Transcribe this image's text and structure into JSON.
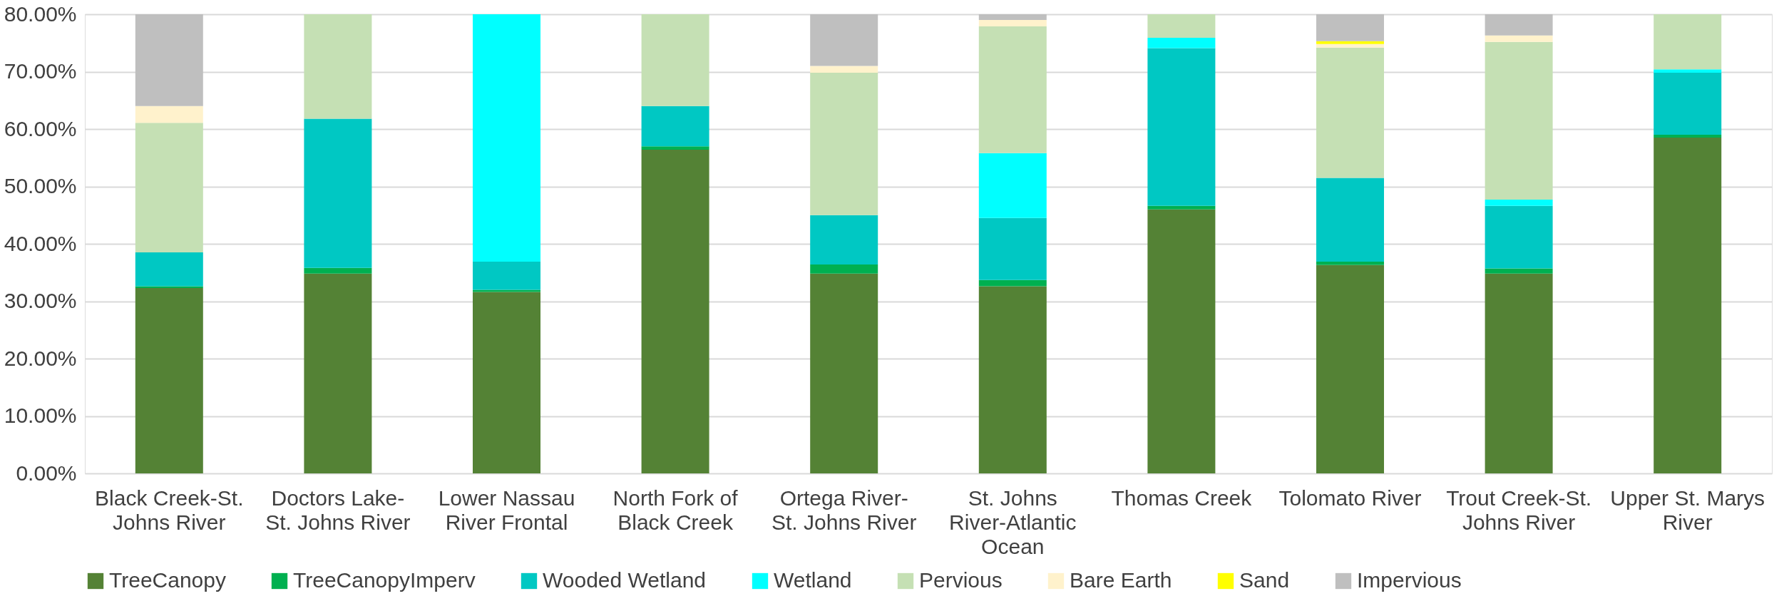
{
  "chart_data": {
    "type": "bar",
    "stacked": true,
    "legend": "bottom",
    "grid": "y",
    "categories": [
      "Black Creek-St. Johns River",
      "Doctors Lake-St. Johns River",
      "Lower Nassau River Frontal",
      "North Fork of Black Creek",
      "Ortega River-St. Johns River",
      "St. Johns River-Atlantic Ocean",
      "Thomas Creek",
      "Tolomato River",
      "Trout Creek-St. Johns River",
      "Upper St. Marys River"
    ],
    "ylim": [
      0,
      80
    ],
    "yticks": [
      {
        "value": 0,
        "label": "0.00%"
      },
      {
        "value": 10,
        "label": "10.00%"
      },
      {
        "value": 20,
        "label": "20.00%"
      },
      {
        "value": 30,
        "label": "30.00%"
      },
      {
        "value": 40,
        "label": "40.00%"
      },
      {
        "value": 50,
        "label": "50.00%"
      },
      {
        "value": 60,
        "label": "60.00%"
      },
      {
        "value": 70,
        "label": "70.00%"
      },
      {
        "value": 80,
        "label": "80.00%"
      }
    ],
    "series": [
      {
        "name": "TreeCanopy",
        "color": "#548235",
        "values": [
          32.3,
          34.8,
          31.6,
          56.4,
          34.8,
          32.6,
          46.0,
          36.3,
          34.8,
          58.5
        ]
      },
      {
        "name": "TreeCanopyImperv",
        "color": "#00b050",
        "values": [
          0.3,
          1.0,
          0.4,
          0.6,
          1.6,
          1.1,
          0.6,
          0.6,
          0.9,
          0.5
        ]
      },
      {
        "name": "Wooded Wetland",
        "color": "#00c8c3",
        "values": [
          5.9,
          26.0,
          4.9,
          7.0,
          8.6,
          10.8,
          27.5,
          14.6,
          10.9,
          10.8
        ]
      },
      {
        "name": "Wetland",
        "color": "#00ffff",
        "values": [
          null,
          null,
          43.1,
          null,
          null,
          11.3,
          1.8,
          null,
          1.1,
          0.6
        ]
      },
      {
        "name": "Pervious",
        "color": "#c5e0b4",
        "values": [
          22.6,
          18.2,
          null,
          16.0,
          24.8,
          22.1,
          4.1,
          22.7,
          27.5,
          9.6
        ]
      },
      {
        "name": "Bare Earth",
        "color": "#fff2cc",
        "values": [
          2.9,
          null,
          null,
          null,
          1.2,
          1.1,
          null,
          0.6,
          1.1,
          null
        ]
      },
      {
        "name": "Sand",
        "color": "#ffff00",
        "values": [
          null,
          null,
          null,
          null,
          null,
          null,
          null,
          0.5,
          null,
          null
        ]
      },
      {
        "name": "Impervious",
        "color": "#bfbfbf",
        "values": [
          16.0,
          null,
          null,
          null,
          9.0,
          1.0,
          null,
          4.7,
          3.7,
          null
        ]
      }
    ]
  }
}
